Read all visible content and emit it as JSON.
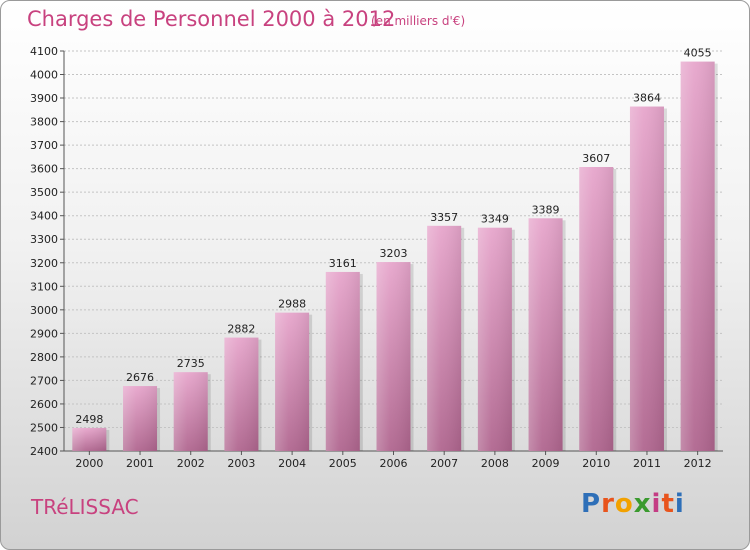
{
  "header": {
    "title": "Charges de Personnel 2000 à 2012",
    "subtitle": "(en milliers d'€)"
  },
  "footer": {
    "commune": "TRéLISSAC",
    "logo_letters": [
      "P",
      "r",
      "o",
      "x",
      "i",
      "t",
      "i"
    ],
    "logo_colors": [
      "#2e6fb8",
      "#e8541c",
      "#f2a100",
      "#3a9a2e",
      "#c43c84",
      "#e8541c",
      "#2e6fb8"
    ]
  },
  "colors": {
    "bar_top": "#e7a6cc",
    "bar_bottom": "#b0668f",
    "accent": "#c8427f"
  },
  "chart_data": {
    "type": "bar",
    "title": "Charges de Personnel 2000 à 2012",
    "subtitle": "(en milliers d'€)",
    "categories": [
      "2000",
      "2001",
      "2002",
      "2003",
      "2004",
      "2005",
      "2006",
      "2007",
      "2008",
      "2009",
      "2010",
      "2011",
      "2012"
    ],
    "values": [
      2498,
      2676,
      2735,
      2882,
      2988,
      3161,
      3203,
      3357,
      3349,
      3389,
      3607,
      3864,
      4055
    ],
    "ylim": [
      2400,
      4100
    ],
    "yticks": [
      2400,
      2500,
      2600,
      2700,
      2800,
      2900,
      3000,
      3100,
      3200,
      3300,
      3400,
      3500,
      3600,
      3700,
      3800,
      3900,
      4000,
      4100
    ],
    "grid": true,
    "legend": "none"
  }
}
